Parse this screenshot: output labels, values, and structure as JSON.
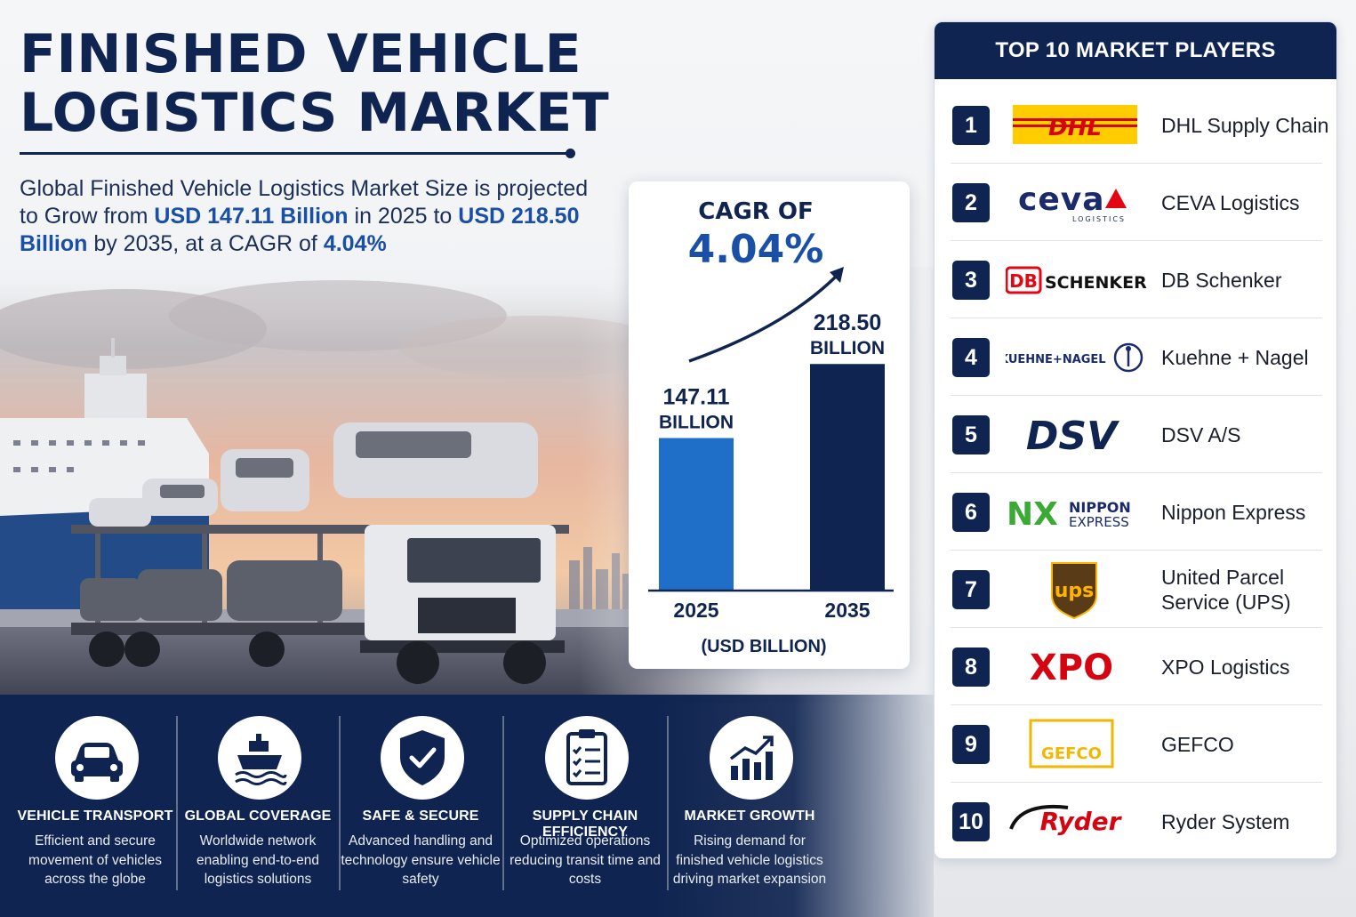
{
  "title_line1": "FINISHED VEHICLE",
  "title_line2": "LOGISTICS MARKET",
  "subtitle": {
    "part1": "Global Finished Vehicle Logistics Market Size is projected to Grow from ",
    "start_value": "USD 147.11 Billion",
    "part2": " in 2025 to ",
    "end_value": "USD 218.50 Billion",
    "part3": " by 2035, at a CAGR of ",
    "cagr": "4.04%"
  },
  "cagr_card": {
    "label": "CAGR OF",
    "value": "4.04%",
    "unit_label": "(USD BILLION)"
  },
  "chart_data": {
    "type": "bar",
    "categories": [
      "2025",
      "2035"
    ],
    "values": [
      147.11,
      218.5
    ],
    "value_labels": [
      "147.11",
      "218.50"
    ],
    "value_unit": "BILLION",
    "ylabel": "(USD BILLION)",
    "ylim": [
      0,
      235
    ],
    "colors": [
      "#1f6fc9",
      "#0f2450"
    ]
  },
  "players_panel": {
    "heading": "TOP 10 MARKET PLAYERS",
    "players": [
      {
        "rank": "1",
        "name": "DHL Supply Chain",
        "logo": "DHL",
        "logo_icon": "dhl-logo"
      },
      {
        "rank": "2",
        "name": "CEVA Logistics",
        "logo": "ceva",
        "logo_sub": "LOGISTICS",
        "logo_icon": "ceva-logo"
      },
      {
        "rank": "3",
        "name": "DB Schenker",
        "logo": "SCHENKER",
        "logo_mark": "DB",
        "logo_icon": "db-schenker-logo"
      },
      {
        "rank": "4",
        "name": "Kuehne + Nagel",
        "logo": "KUEHNE+NAGEL",
        "logo_icon": "kuehne-nagel-logo"
      },
      {
        "rank": "5",
        "name": "DSV A/S",
        "logo": "DSV",
        "logo_icon": "dsv-logo"
      },
      {
        "rank": "6",
        "name": "Nippon Express",
        "logo": "NX",
        "logo_sub1": "NIPPON",
        "logo_sub2": "EXPRESS",
        "logo_icon": "nippon-express-logo"
      },
      {
        "rank": "7",
        "name": "United Parcel Service (UPS)",
        "logo": "ups",
        "logo_icon": "ups-logo"
      },
      {
        "rank": "8",
        "name": "XPO Logistics",
        "logo": "XPO",
        "logo_icon": "xpo-logo"
      },
      {
        "rank": "9",
        "name": "GEFCO",
        "logo": "GEFCO",
        "logo_icon": "gefco-logo"
      },
      {
        "rank": "10",
        "name": "Ryder System",
        "logo": "Ryder",
        "logo_icon": "ryder-logo"
      }
    ]
  },
  "features": [
    {
      "title": "VEHICLE TRANSPORT",
      "desc": "Efficient and secure movement of vehicles across the globe",
      "icon": "car-icon"
    },
    {
      "title": "GLOBAL COVERAGE",
      "desc": "Worldwide network enabling end-to-end logistics solutions",
      "icon": "ship-icon"
    },
    {
      "title": "SAFE & SECURE",
      "desc": "Advanced handling and technology ensure vehicle safety",
      "icon": "shield-check-icon"
    },
    {
      "title": "SUPPLY CHAIN EFFICIENCY",
      "desc": "Optimized operations reducing transit time and costs",
      "icon": "clipboard-checklist-icon"
    },
    {
      "title": "MARKET GROWTH",
      "desc": "Rising demand for finished vehicle logistics driving market expansion",
      "icon": "growth-chart-icon"
    }
  ],
  "colors": {
    "navy": "#0f2450",
    "accent_blue": "#1a4fa8",
    "bar_2025": "#1f6fc9",
    "bar_2035": "#0f2450",
    "dhl_yellow": "#ffcc00",
    "dhl_red": "#d40511"
  }
}
